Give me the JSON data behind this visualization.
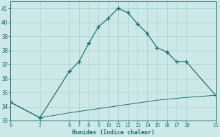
{
  "xlabel": "Humidex (Indice chaleur)",
  "bg_color": "#cce8e8",
  "line_color": "#1a6e6a",
  "grid_color": "#aad4d0",
  "x_upper": [
    0,
    3,
    6,
    7,
    8,
    9,
    10,
    11,
    12,
    13,
    14,
    15,
    16,
    17,
    18,
    21
  ],
  "y_upper": [
    34.3,
    33.2,
    36.5,
    37.2,
    38.5,
    39.7,
    40.3,
    41.0,
    40.7,
    39.9,
    39.2,
    38.2,
    37.9,
    37.2,
    37.2,
    34.8
  ],
  "x_lower": [
    0,
    3,
    6,
    7,
    8,
    9,
    10,
    11,
    12,
    13,
    14,
    15,
    16,
    17,
    18,
    21
  ],
  "y_lower": [
    34.3,
    33.2,
    33.55,
    33.65,
    33.75,
    33.85,
    33.95,
    34.05,
    34.15,
    34.25,
    34.35,
    34.45,
    34.52,
    34.58,
    34.65,
    34.8
  ],
  "xticks": [
    0,
    3,
    6,
    7,
    8,
    9,
    10,
    11,
    12,
    13,
    14,
    15,
    16,
    17,
    18,
    21
  ],
  "yticks": [
    33,
    34,
    35,
    36,
    37,
    38,
    39,
    40,
    41
  ],
  "xlim": [
    0,
    21
  ],
  "ylim": [
    33,
    41.5
  ]
}
